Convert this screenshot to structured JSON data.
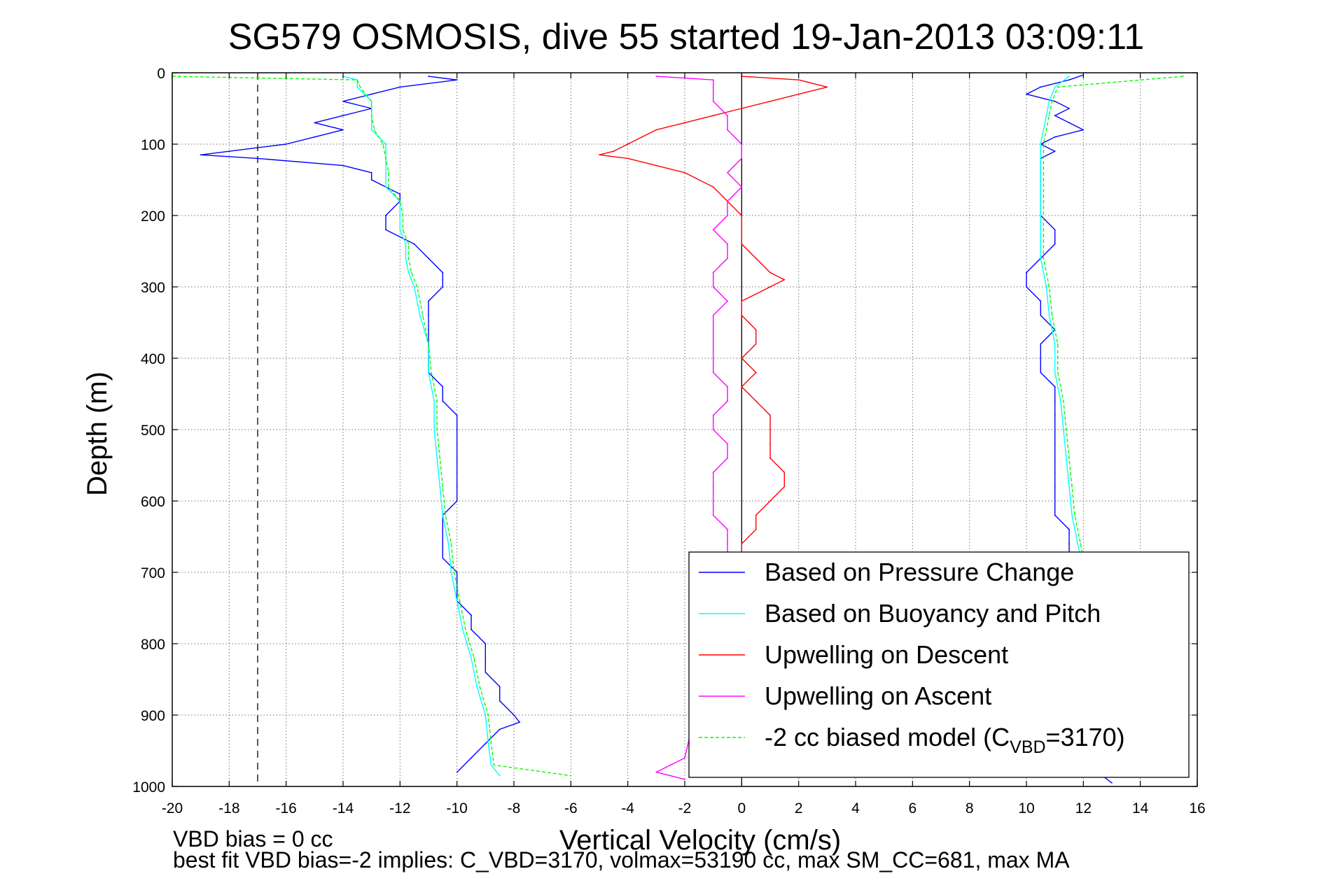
{
  "chart_data": {
    "type": "line",
    "title": "SG579 OSMOSIS, dive 55 started 19-Jan-2013 03:09:11",
    "xlabel": "Vertical Velocity (cm/s)",
    "ylabel": "Depth (m)",
    "xlim": [
      -20,
      16
    ],
    "ylim": [
      0,
      1000
    ],
    "y_reversed": true,
    "grid": true,
    "x_ticks": [
      "-20",
      "-18",
      "-16",
      "-14",
      "-12",
      "-10",
      "-8",
      "-6",
      "-4",
      "-2",
      "0",
      "2",
      "4",
      "6",
      "8",
      "10",
      "12",
      "14",
      "16"
    ],
    "y_ticks": [
      "0",
      "100",
      "200",
      "300",
      "400",
      "500",
      "600",
      "700",
      "800",
      "900",
      "1000"
    ],
    "legend_position": "bottom-right",
    "reference_lines": [
      {
        "x": -17,
        "style": "dashed",
        "color": "#000000"
      },
      {
        "x": 0,
        "style": "solid",
        "color": "#000000"
      }
    ],
    "series": [
      {
        "name": "Based on Pressure Change",
        "color": "#0000ff",
        "style": "solid",
        "segments": [
          {
            "depth": [
              5,
              10,
              20,
              30,
              40,
              50,
              60,
              70,
              80,
              90,
              100,
              110,
              115,
              120,
              130,
              140,
              150,
              160,
              170,
              180,
              200,
              220,
              240,
              260,
              280,
              290,
              300,
              320,
              340,
              360,
              380,
              400,
              420,
              440,
              460,
              480,
              500,
              520,
              540,
              560,
              580,
              600,
              620,
              640,
              660,
              680,
              700,
              720,
              740,
              760,
              780,
              800,
              820,
              840,
              860,
              880,
              900,
              910,
              920,
              940,
              960,
              980
            ],
            "velocity": [
              -11,
              -10,
              -12,
              -13,
              -14,
              -13,
              -14,
              -15,
              -14,
              -15,
              -16,
              -18,
              -19,
              -17,
              -14,
              -13,
              -13,
              -12.5,
              -12,
              -12,
              -12.5,
              -12.5,
              -11.5,
              -11,
              -10.5,
              -10.5,
              -10.5,
              -11,
              -11,
              -11,
              -11,
              -11,
              -11,
              -10.5,
              -10.5,
              -10,
              -10,
              -10,
              -10,
              -10,
              -10,
              -10,
              -10.5,
              -10.5,
              -10.5,
              -10.5,
              -10,
              -10,
              -10,
              -9.5,
              -9.5,
              -9,
              -9,
              -9,
              -8.5,
              -8.5,
              -8,
              -7.8,
              -8.5,
              -9,
              -9.5,
              -10
            ]
          },
          {
            "depth": [
              3,
              10,
              20,
              30,
              40,
              50,
              60,
              70,
              80,
              90,
              100,
              110,
              120,
              140,
              160,
              180,
              200,
              220,
              240,
              260,
              280,
              300,
              320,
              340,
              360,
              380,
              400,
              420,
              440,
              460,
              480,
              500,
              520,
              540,
              560,
              580,
              600,
              620,
              640,
              660,
              680,
              700,
              720,
              740,
              760,
              780,
              800,
              820,
              840,
              860,
              880,
              900,
              920,
              940,
              960,
              980,
              995
            ],
            "velocity": [
              12,
              11.5,
              10.5,
              10,
              11,
              11.5,
              11,
              11.5,
              12,
              11,
              10.5,
              11,
              10.5,
              10.5,
              10.5,
              10.5,
              10.5,
              11,
              11,
              10.5,
              10,
              10,
              10.5,
              10.5,
              11,
              10.5,
              10.5,
              10.5,
              11,
              11,
              11,
              11,
              11,
              11,
              11,
              11,
              11,
              11,
              11.5,
              11.5,
              11.5,
              11.5,
              11.5,
              11.5,
              11.5,
              11.5,
              11.5,
              11.5,
              11.5,
              11.5,
              11.5,
              11.5,
              11.5,
              12,
              12,
              12.5,
              13
            ]
          }
        ]
      },
      {
        "name": "Based on Buoyancy and Pitch",
        "color": "#00ffff",
        "style": "solid",
        "segments": [
          {
            "depth": [
              5,
              10,
              20,
              40,
              60,
              80,
              100,
              120,
              140,
              160,
              180,
              200,
              220,
              240,
              260,
              280,
              300,
              340,
              380,
              420,
              460,
              500,
              540,
              580,
              620,
              660,
              700,
              740,
              780,
              820,
              860,
              900,
              940,
              970,
              985
            ],
            "velocity": [
              -14,
              -13.5,
              -13.5,
              -13,
              -13,
              -13,
              -12.5,
              -12.5,
              -12.5,
              -12.5,
              -12,
              -12,
              -12,
              -11.8,
              -11.8,
              -11.7,
              -11.5,
              -11.3,
              -11,
              -11,
              -10.8,
              -10.8,
              -10.7,
              -10.6,
              -10.5,
              -10.3,
              -10.2,
              -10,
              -9.8,
              -9.5,
              -9.3,
              -9,
              -8.9,
              -8.8,
              -8.5
            ]
          },
          {
            "depth": [
              5,
              20,
              40,
              60,
              100,
              140,
              180,
              220,
              260,
              300,
              340,
              380,
              420,
              460,
              500,
              540,
              580,
              620,
              660,
              700,
              740,
              780,
              820,
              860,
              900,
              940,
              980
            ],
            "velocity": [
              11.5,
              11,
              10.8,
              10.7,
              10.5,
              10.5,
              10.5,
              10.5,
              10.5,
              10.7,
              10.8,
              11,
              11,
              11.2,
              11.3,
              11.4,
              11.5,
              11.6,
              11.8,
              12,
              12,
              12.1,
              12.2,
              12.3,
              12.4,
              12.5,
              12.7
            ]
          }
        ]
      },
      {
        "name": "Upwelling on Descent",
        "color": "#ff0000",
        "style": "solid",
        "segments": [
          {
            "depth": [
              5,
              10,
              20,
              30,
              40,
              50,
              60,
              70,
              80,
              90,
              100,
              110,
              115,
              120,
              130,
              140,
              160,
              180,
              200,
              220,
              240,
              260,
              280,
              290,
              300,
              320,
              340,
              360,
              380,
              400,
              420,
              440,
              460,
              480,
              500,
              520,
              540,
              560,
              580,
              600,
              620,
              640,
              660,
              680,
              700
            ],
            "velocity": [
              0,
              2,
              3,
              2,
              1,
              0,
              -1,
              -2,
              -3,
              -3.5,
              -4,
              -4.5,
              -5,
              -4,
              -3,
              -2,
              -1,
              -0.5,
              0,
              0,
              0,
              0.5,
              1,
              1.5,
              1,
              0,
              0,
              0.5,
              0.5,
              0,
              0.5,
              0,
              0.5,
              1,
              1,
              1,
              1,
              1.5,
              1.5,
              1,
              0.5,
              0.5,
              0,
              0,
              0
            ]
          }
        ]
      },
      {
        "name": "Upwelling on Ascent",
        "color": "#ff00ff",
        "style": "solid",
        "segments": [
          {
            "depth": [
              5,
              10,
              20,
              40,
              60,
              80,
              100,
              120,
              140,
              160,
              180,
              200,
              220,
              240,
              260,
              280,
              300,
              320,
              340,
              360,
              380,
              400,
              420,
              440,
              460,
              480,
              500,
              520,
              540,
              560,
              580,
              600,
              620,
              640,
              660,
              680,
              700,
              960,
              970,
              980,
              990
            ],
            "velocity": [
              -3,
              -1,
              -1,
              -1,
              -0.5,
              -0.5,
              0,
              0,
              -0.5,
              0,
              -0.5,
              -0.5,
              -1,
              -0.5,
              -0.5,
              -1,
              -1,
              -0.5,
              -1,
              -1,
              -1,
              -1,
              -1,
              -0.5,
              -0.5,
              -1,
              -1,
              -0.5,
              -0.5,
              -1,
              -1,
              -1,
              -1,
              -0.5,
              -0.5,
              -0.5,
              -0.5,
              -2,
              -2.5,
              -3,
              -2
            ]
          }
        ]
      },
      {
        "name": "-2 cc biased model (C",
        "name_subscript": "VBD",
        "name_suffix": "=3170)",
        "color": "#00ff00",
        "style": "dashed",
        "segments": [
          {
            "depth": [
              5,
              10,
              20,
              40,
              60,
              80,
              100,
              120,
              140,
              160,
              180,
              200,
              220,
              240,
              260,
              280,
              300,
              340,
              380,
              420,
              460,
              500,
              540,
              580,
              620,
              660,
              700,
              740,
              780,
              820,
              860,
              900,
              940,
              970,
              985
            ],
            "velocity": [
              -20,
              -13.5,
              -13.4,
              -13,
              -13,
              -12.9,
              -12.6,
              -12.5,
              -12.4,
              -12.4,
              -12,
              -11.9,
              -11.9,
              -11.7,
              -11.7,
              -11.6,
              -11.4,
              -11.2,
              -11,
              -10.9,
              -10.7,
              -10.7,
              -10.6,
              -10.5,
              -10.4,
              -10.2,
              -10.1,
              -9.9,
              -9.7,
              -9.4,
              -9.2,
              -8.9,
              -8.8,
              -8.7,
              -6
            ]
          },
          {
            "depth": [
              5,
              20,
              40,
              60,
              100,
              140,
              180,
              220,
              260,
              300,
              340,
              380,
              420,
              460,
              500,
              540,
              580,
              620,
              660,
              700,
              740,
              780,
              820,
              860,
              900,
              940,
              980
            ],
            "velocity": [
              15.5,
              11.1,
              10.9,
              10.8,
              10.6,
              10.6,
              10.6,
              10.6,
              10.6,
              10.8,
              10.9,
              11.1,
              11.1,
              11.3,
              11.4,
              11.5,
              11.6,
              11.7,
              11.9,
              12.1,
              12.1,
              12.2,
              12.3,
              12.4,
              12.5,
              12.6,
              13
            ]
          }
        ]
      }
    ],
    "annotations": [
      "VBD bias = 0 cc",
      "best fit VBD bias=-2 implies: C_VBD=3170, volmax=53190 cc, max SM_CC=681, max MA"
    ]
  }
}
